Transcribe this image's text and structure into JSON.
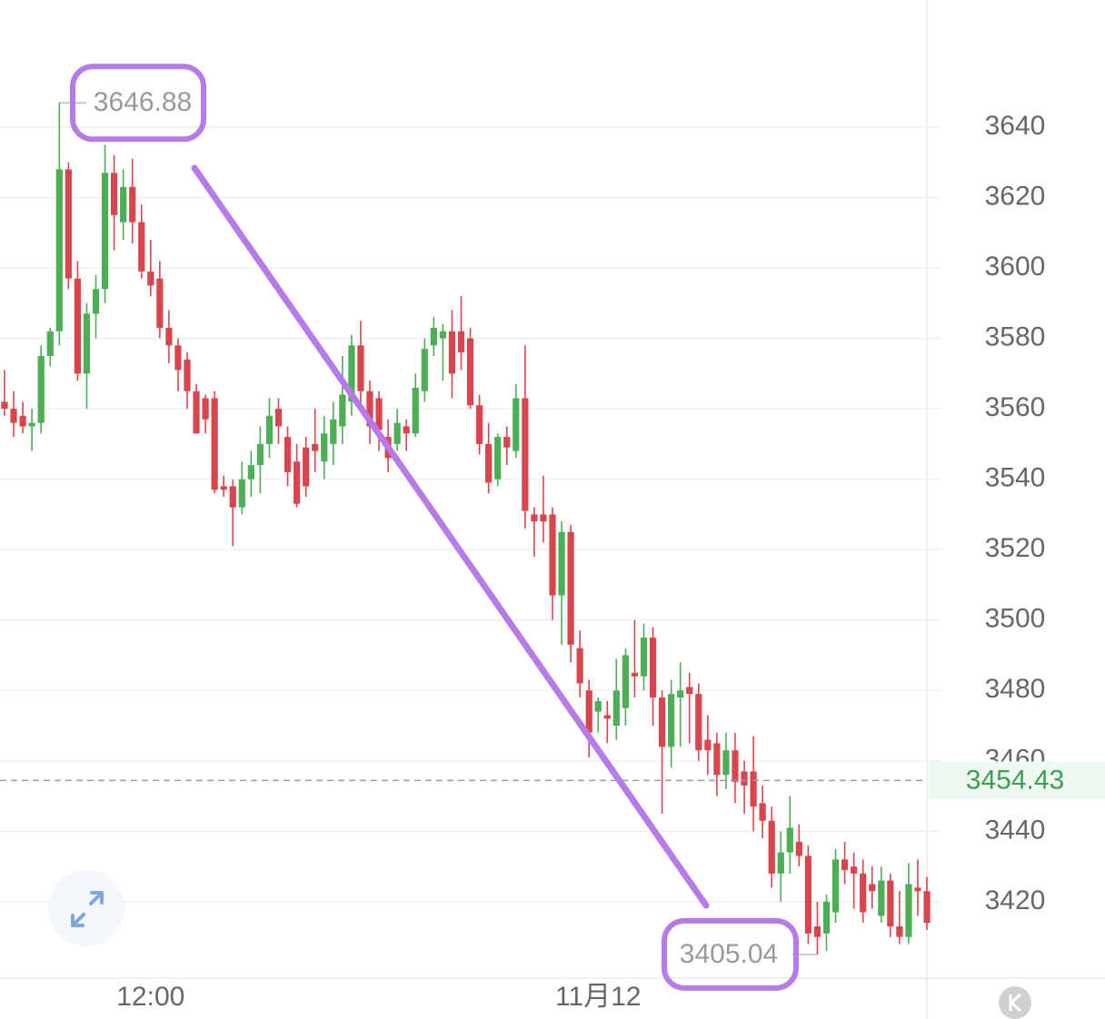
{
  "chart_data": {
    "type": "candlestick",
    "up_color": "#4cae55",
    "down_color": "#d9454d",
    "categories": [
      null,
      null,
      null,
      null,
      null,
      null,
      null,
      null,
      null,
      null,
      null,
      null,
      null,
      null,
      null,
      null,
      "12:00",
      null,
      null,
      null,
      null,
      null,
      null,
      null,
      null,
      null,
      null,
      null,
      null,
      null,
      null,
      null,
      null,
      null,
      null,
      null,
      null,
      null,
      null,
      null,
      null,
      null,
      null,
      null,
      null,
      null,
      null,
      null,
      null,
      null,
      null,
      null,
      null,
      null,
      null,
      null,
      null,
      null,
      null,
      null,
      null,
      null,
      null,
      null,
      null,
      "11月12",
      null,
      null,
      null,
      null,
      null,
      null,
      null,
      null,
      null,
      null,
      null,
      null,
      null,
      null,
      null,
      null,
      null,
      null,
      null,
      null,
      null,
      null,
      null,
      null,
      null,
      null,
      null,
      null,
      null,
      null,
      null,
      null,
      null,
      null,
      null,
      null
    ],
    "open": [
      3562,
      3560,
      3558,
      3555,
      3556,
      3575,
      3582,
      3628,
      3597,
      3570,
      3587,
      3594,
      3627,
      3613,
      3623,
      3613,
      3599,
      3597,
      3583,
      3578,
      3574,
      3565,
      3563,
      3563,
      3538,
      3538,
      3532,
      3540,
      3544,
      3550,
      3560,
      3552,
      3545,
      3549,
      3550,
      3545,
      3550,
      3555,
      3562,
      3578,
      3565,
      3563,
      3552,
      3550,
      3555,
      3553,
      3565,
      3578,
      3580,
      3582,
      3582,
      3580,
      3561,
      3550,
      3540,
      3552,
      3548,
      3563,
      3530,
      3530,
      3530,
      3507,
      3525,
      3492,
      3480,
      3474,
      3473,
      3470,
      3475,
      3485,
      3484,
      3495,
      3478,
      3464,
      3478,
      3481,
      3479,
      3466,
      3465,
      3456,
      3463,
      3457,
      3457,
      3448,
      3443,
      3428,
      3434,
      3437,
      3433,
      3413,
      3411,
      3417,
      3432,
      3430,
      3428,
      3425,
      3416,
      3426,
      3413,
      3410,
      3424,
      3423
    ],
    "high": [
      3571,
      3565,
      3562,
      3560,
      3578,
      3583,
      3646.88,
      3630,
      3602,
      3590,
      3598,
      3635,
      3632,
      3628,
      3631,
      3618,
      3608,
      3602,
      3588,
      3580,
      3576,
      3567,
      3564,
      3565,
      3541,
      3540,
      3545,
      3548,
      3555,
      3563,
      3563,
      3555,
      3550,
      3552,
      3560,
      3558,
      3562,
      3575,
      3581,
      3585,
      3568,
      3565,
      3557,
      3560,
      3557,
      3570,
      3580,
      3586,
      3584,
      3588,
      3592,
      3583,
      3564,
      3556,
      3553,
      3555,
      3567,
      3578,
      3532,
      3541,
      3532,
      3528,
      3527,
      3497,
      3483,
      3478,
      3477,
      3489,
      3492,
      3500,
      3499,
      3498,
      3480,
      3483,
      3488,
      3485,
      3482,
      3473,
      3468,
      3468,
      3468,
      3460,
      3467,
      3453,
      3447,
      3440,
      3450,
      3442,
      3436,
      3420,
      3422,
      3435,
      3437,
      3434,
      3432,
      3430,
      3430,
      3428,
      3423,
      3431,
      3432,
      3427
    ],
    "low": [
      3558,
      3552,
      3553,
      3548,
      3553,
      3572,
      3578,
      3594,
      3568,
      3560,
      3580,
      3590,
      3605,
      3608,
      3607,
      3597,
      3592,
      3580,
      3573,
      3565,
      3560,
      3553,
      3553,
      3536,
      3535,
      3521,
      3530,
      3535,
      3536,
      3546,
      3550,
      3538,
      3532,
      3535,
      3542,
      3540,
      3544,
      3550,
      3558,
      3560,
      3550,
      3548,
      3542,
      3548,
      3548,
      3552,
      3562,
      3575,
      3568,
      3563,
      3571,
      3560,
      3547,
      3536,
      3538,
      3544,
      3546,
      3526,
      3518,
      3522,
      3500,
      3493,
      3488,
      3478,
      3461,
      3468,
      3465,
      3466,
      3470,
      3478,
      3480,
      3470,
      3445,
      3458,
      3464,
      3465,
      3460,
      3456,
      3450,
      3452,
      3448,
      3445,
      3440,
      3438,
      3424,
      3420,
      3428,
      3430,
      3408,
      3405.04,
      3406,
      3414,
      3425,
      3418,
      3414,
      3418,
      3414,
      3410,
      3408,
      3408,
      3416,
      3412
    ],
    "close": [
      3560,
      3556,
      3555,
      3556,
      3575,
      3582,
      3628,
      3597,
      3570,
      3587,
      3594,
      3627,
      3615,
      3623,
      3613,
      3599,
      3595,
      3583,
      3578,
      3571,
      3565,
      3553,
      3557,
      3537,
      3537,
      3532,
      3540,
      3544,
      3550,
      3558,
      3555,
      3542,
      3533,
      3538,
      3548,
      3553,
      3557,
      3564,
      3578,
      3565,
      3555,
      3554,
      3546,
      3556,
      3553,
      3566,
      3577,
      3583,
      3582,
      3570,
      3576,
      3561,
      3550,
      3539,
      3552,
      3549,
      3563,
      3531,
      3528,
      3528,
      3507,
      3525,
      3493,
      3482,
      3468,
      3477,
      3472,
      3480,
      3490,
      3484,
      3495,
      3478,
      3464,
      3479,
      3480,
      3479,
      3463,
      3463,
      3456,
      3463,
      3454,
      3453,
      3447,
      3443,
      3428,
      3434,
      3441,
      3433,
      3411,
      3410,
      3420,
      3432,
      3429,
      3428,
      3417,
      3423,
      3426,
      3413,
      3410,
      3425,
      3423,
      3414
    ],
    "ylim": [
      3398.3,
      3676.1
    ],
    "yticks": [
      3420,
      3440,
      3460,
      3480,
      3500,
      3520,
      3540,
      3560,
      3580,
      3600,
      3620,
      3640
    ],
    "grid": true,
    "high_marker": 3646.88,
    "low_marker": 3405.04,
    "last_price": 3454.43
  }
}
